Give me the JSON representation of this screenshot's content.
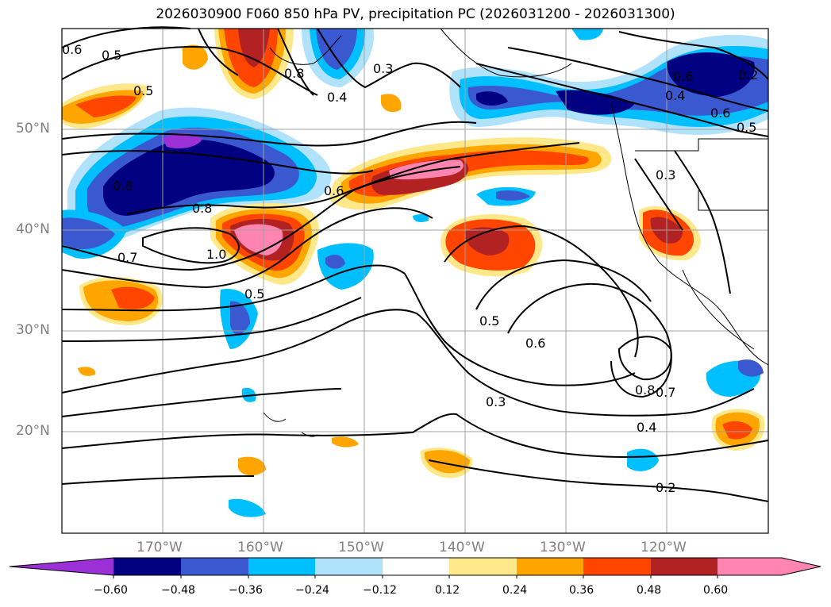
{
  "title": "2026030900 F060 850 hPa PV, precipitation PC (2026031200 - 2026031300)",
  "lat_labels": [
    "50°N",
    "40°N",
    "30°N",
    "20°N"
  ],
  "lon_labels": [
    "170°W",
    "160°W",
    "150°W",
    "140°W",
    "130°W",
    "120°W"
  ],
  "colorbar": {
    "ticks": [
      "−0.60",
      "−0.48",
      "−0.36",
      "−0.24",
      "−0.12",
      "0.12",
      "0.24",
      "0.36",
      "0.48",
      "0.60"
    ],
    "colors": [
      "#9b30d6",
      "#000080",
      "#3a58cf",
      "#00bfff",
      "#b0e2fb",
      "#ffffff",
      "#ffe88a",
      "#ffa500",
      "#ff4500",
      "#b22222",
      "#ff85b0"
    ]
  },
  "contour_labels": [
    "0.6",
    "0.5",
    "0.5",
    "0.3",
    "0.4",
    "0.8",
    "0.6",
    "0.8",
    "0.8",
    "1.0",
    "0.7",
    "0.5",
    "0.6",
    "0.4",
    "0.6",
    "0.5",
    "0.2",
    "0.3",
    "0.5",
    "0.6",
    "0.8",
    "0.7",
    "0.3",
    "0.4",
    "0.2"
  ]
}
